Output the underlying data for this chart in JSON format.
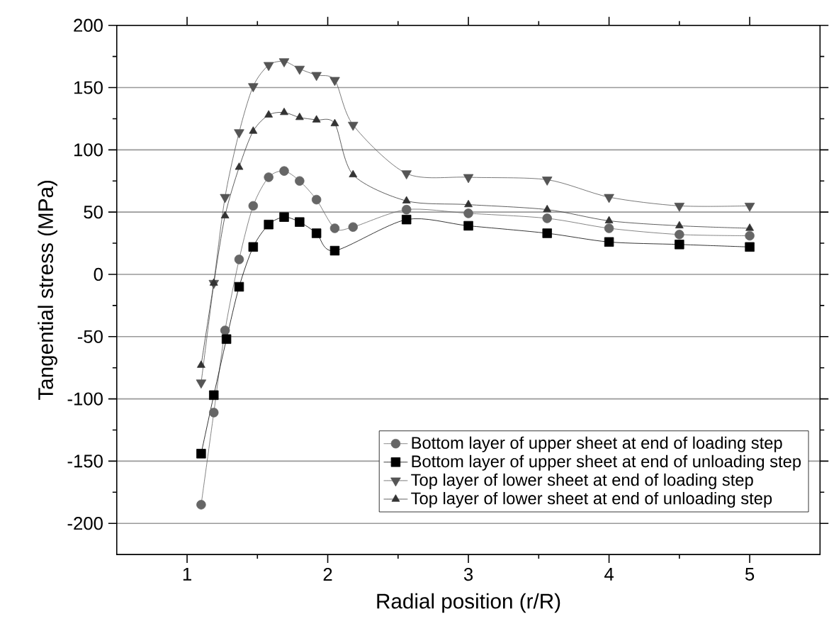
{
  "chart_data": {
    "type": "line",
    "xlabel": "Radial position (r/R)",
    "ylabel": "Tangential stress (MPa)",
    "xlim": [
      0.5,
      5.5
    ],
    "xticks": [
      1,
      2,
      3,
      4,
      5
    ],
    "ylim": [
      -225,
      200
    ],
    "yticks": [
      -200,
      -150,
      -100,
      -50,
      0,
      50,
      100,
      150,
      200
    ],
    "grid": "y",
    "legend": "bottom right",
    "x": [
      1.1,
      1.19,
      1.27,
      1.37,
      1.47,
      1.58,
      1.69,
      1.8,
      1.92,
      2.05,
      2.18,
      2.56,
      3,
      3.56,
      4,
      4.5,
      5
    ],
    "series": [
      {
        "name": "Bottom layer of upper sheet at end of loading step",
        "color": "#666666",
        "marker": "circle",
        "values": [
          -185,
          -111,
          -45,
          12,
          55,
          78,
          83,
          75,
          60,
          37,
          38,
          52,
          49,
          45,
          37,
          32,
          31
        ]
      },
      {
        "name": "Bottom layer of upper sheet at end of unloading step",
        "color": "#000000",
        "marker": "square",
        "x": [
          1.1,
          1.19,
          1.28,
          1.37,
          1.47,
          1.58,
          1.69,
          1.8,
          1.92,
          2.05,
          2.56,
          3,
          3.56,
          4,
          4.5,
          5
        ],
        "values": [
          -144,
          -97,
          -52,
          -10,
          22,
          40,
          46,
          42,
          33,
          19,
          44,
          39,
          33,
          26,
          24,
          22
        ]
      },
      {
        "name": "Top layer of lower sheet at end of loading step",
        "color": "#555555",
        "marker": "triangle-down",
        "values": [
          -87,
          -7,
          62,
          114,
          151,
          168,
          171,
          165,
          160,
          156,
          120,
          81,
          78,
          76,
          62,
          55,
          55
        ]
      },
      {
        "name": "Top layer of lower sheet at end of unloading step",
        "color": "#333333",
        "marker": "triangle",
        "values": [
          -73,
          -7,
          47,
          86,
          115,
          128,
          130,
          126,
          124,
          121,
          80,
          59,
          56,
          52,
          43,
          39,
          37
        ]
      }
    ]
  }
}
